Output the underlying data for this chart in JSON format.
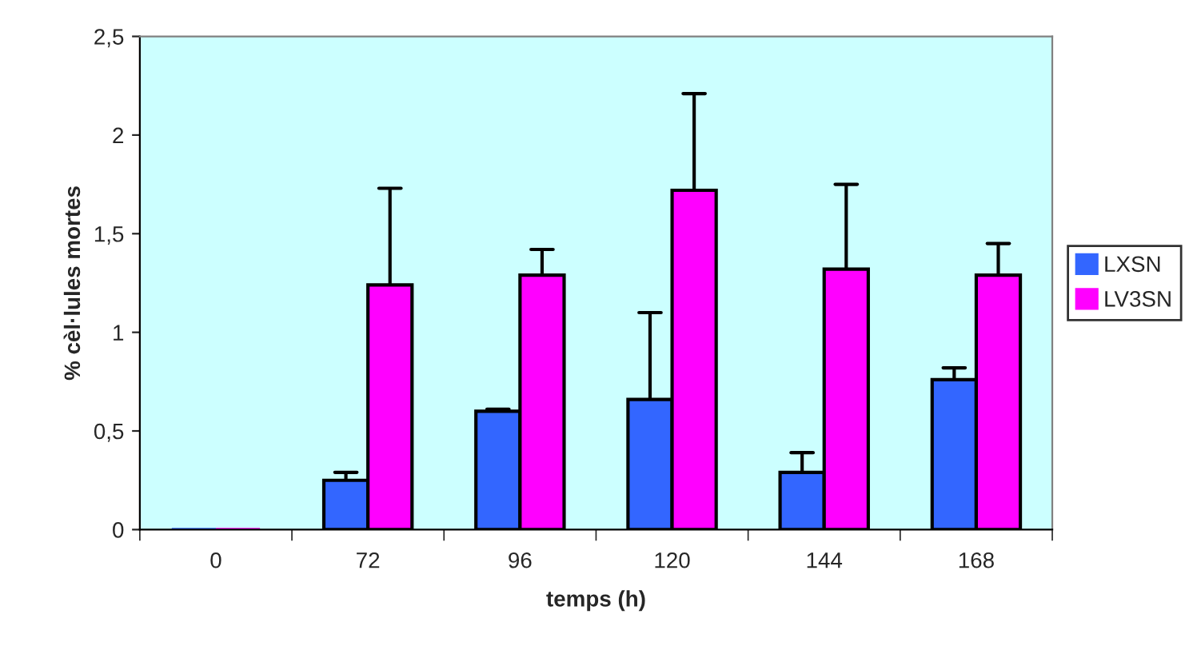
{
  "chart_data": {
    "type": "bar",
    "xlabel": "temps (h)",
    "ylabel": "% cèl·lules mortes",
    "categories": [
      "0",
      "72",
      "96",
      "120",
      "144",
      "168"
    ],
    "series": [
      {
        "name": "LXSN",
        "color": "#3366ff",
        "values": [
          0,
          0.25,
          0.6,
          0.66,
          0.29,
          0.76
        ],
        "errors": [
          null,
          [
            0.25,
            0.29
          ],
          [
            0.6,
            0.61
          ],
          [
            0.66,
            1.1
          ],
          [
            0.29,
            0.39
          ],
          [
            0.76,
            0.82
          ]
        ]
      },
      {
        "name": "LV3SN",
        "color": "#ff00ff",
        "values": [
          0,
          1.24,
          1.29,
          1.72,
          1.32,
          1.29
        ],
        "errors": [
          null,
          [
            1.24,
            1.73
          ],
          [
            1.29,
            1.42
          ],
          [
            1.72,
            2.21
          ],
          [
            1.32,
            1.75
          ],
          [
            1.29,
            1.45
          ]
        ]
      }
    ],
    "ylim": [
      0,
      2.5
    ],
    "yticks": [
      0,
      {
        "value": 0.5,
        "label": "0,5"
      },
      1,
      {
        "value": 1.5,
        "label": "1,5"
      },
      2,
      {
        "value": 2.5,
        "label": "2,5"
      }
    ],
    "legend": "right",
    "grid": false
  }
}
